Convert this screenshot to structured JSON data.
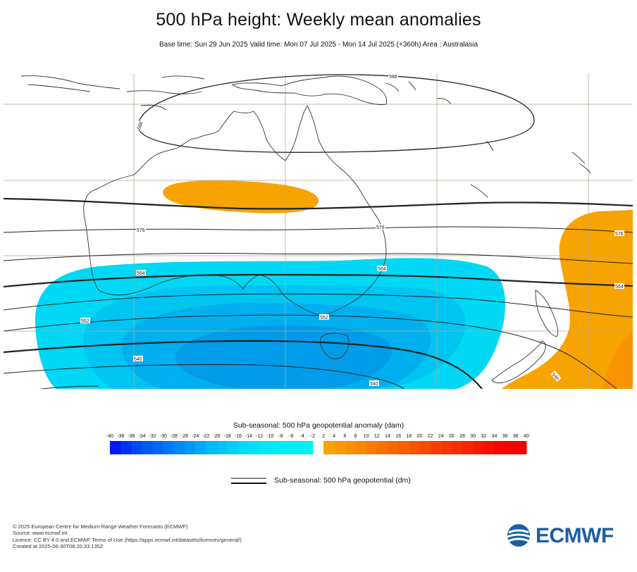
{
  "header": {
    "title": "500 hPa height: Weekly mean anomalies",
    "subtitle": "Base time: Sun 29 Jun 2025 Valid time: Mon 07 Jul 2025 - Mon 14 Jul 2025 (+360h) Area : Australasia"
  },
  "map": {
    "area": "Australasia",
    "colors": {
      "land": "#ffffff",
      "coast": "#333333",
      "grid": "#b0a890",
      "contour": "#222222",
      "positive_anomaly": "#f7a400",
      "negative_anomaly_light": "#00d8f5",
      "negative_anomaly_mid": "#00b8f0",
      "negative_anomaly_deep": "#0096ea"
    },
    "contour_labels": {
      "l588": "588",
      "l588b": "588",
      "l576a": "576",
      "l576b": "576",
      "l576c": "576",
      "l564a": "564",
      "l564b": "564",
      "l564c": "564",
      "l552a": "552",
      "l552b": "552",
      "l540a": "540",
      "l540b": "540",
      "l540c": "540"
    }
  },
  "legend": {
    "colorbar_title": "Sub-seasonal: 500 hPa geopotential anomaly (dam)",
    "ticks": [
      "-40",
      "-38",
      "-36",
      "-34",
      "-32",
      "-30",
      "-28",
      "-26",
      "-24",
      "-22",
      "-20",
      "-18",
      "-16",
      "-14",
      "-12",
      "-10",
      "-8",
      "-6",
      "-4",
      "-2",
      "2",
      "4",
      "6",
      "8",
      "10",
      "12",
      "14",
      "16",
      "18",
      "20",
      "22",
      "24",
      "26",
      "28",
      "30",
      "32",
      "34",
      "36",
      "38",
      "40"
    ],
    "negative_colors": [
      "#0018f5",
      "#0030f5",
      "#0048f5",
      "#0058f5",
      "#0068f5",
      "#0078f5",
      "#0088f5",
      "#0098f5",
      "#00a8f5",
      "#00b8f5",
      "#00c4f5",
      "#00d0f5",
      "#00daf5",
      "#00e0f5",
      "#00e6f5",
      "#00eaf5",
      "#00eef5",
      "#00f0f5",
      "#00f2f5"
    ],
    "positive_colors": [
      "#f7a400",
      "#f79a00",
      "#f79000",
      "#f78600",
      "#f77c00",
      "#f77200",
      "#f76800",
      "#f75e00",
      "#f75400",
      "#f74a00",
      "#f74000",
      "#f73600",
      "#f72c00",
      "#f72200",
      "#f71800",
      "#f70e00",
      "#f70400",
      "#f70000",
      "#f50000"
    ],
    "line_legend_label": "Sub-seasonal: 500 hPa geopotential (dm)"
  },
  "footer": {
    "copyright": "© 2025 European Centre for Medium-Range Weather Forecasts (ECMWF)",
    "source": "Source: www.ecmwf.int",
    "licence": "Licence: CC BY 4.0 and ECMWF Terms of Use (https://apps.ecmwf.int/datasets/licences/general/)",
    "created": "Created at 2025-06-30T08:20:33.135Z",
    "logo_text": "ECMWF"
  }
}
